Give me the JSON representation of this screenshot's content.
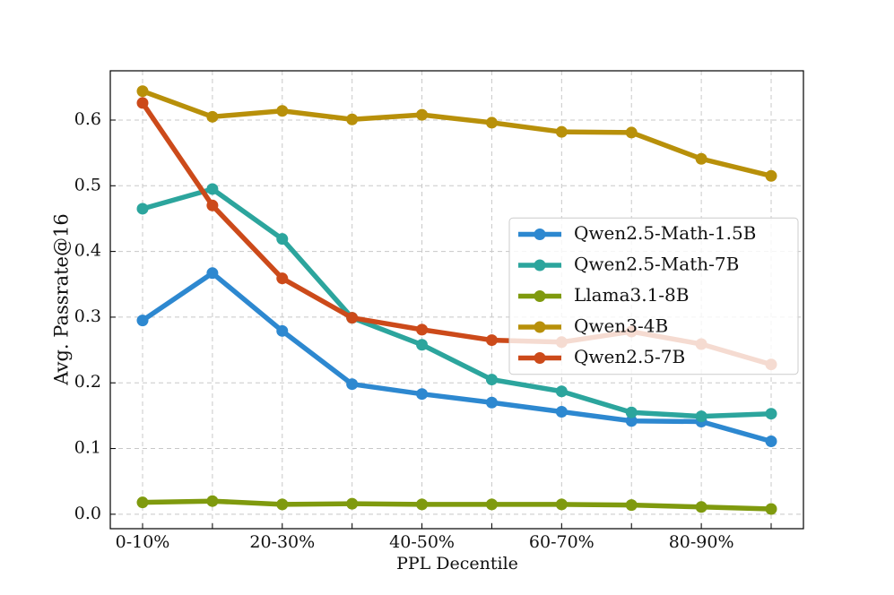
{
  "chart_data": {
    "type": "line",
    "x_label": "PPL Decentile",
    "y_label": "Avg. Passrate@16",
    "categories": [
      "0-10%",
      null,
      "20-30%",
      null,
      "40-50%",
      null,
      "60-70%",
      null,
      "80-90%",
      null
    ],
    "ylim": [
      -0.022,
      0.675
    ],
    "yticks": [
      {
        "value": 0,
        "label": "0.0"
      },
      0.1,
      0.2,
      0.3,
      0.4,
      0.5,
      0.6
    ],
    "grid": true,
    "legend": "center right",
    "series": [
      {
        "name": "Qwen2.5-Math-1.5B",
        "color": "#2d88d0",
        "values": [
          0.295,
          0.367,
          0.279,
          0.198,
          0.183,
          0.17,
          0.156,
          0.142,
          0.141,
          0.111
        ]
      },
      {
        "name": "Qwen2.5-Math-7B",
        "color": "#2ca59d",
        "values": [
          0.465,
          0.495,
          0.419,
          0.299,
          0.258,
          0.205,
          0.187,
          0.155,
          0.149,
          0.153
        ]
      },
      {
        "name": "Llama3.1-8B",
        "color": "#7f9a0e",
        "values": [
          0.018,
          0.02,
          0.015,
          0.016,
          0.015,
          0.015,
          0.015,
          0.014,
          0.011,
          0.008
        ]
      },
      {
        "name": "Qwen3-4B",
        "color": "#b8900a",
        "values": [
          0.644,
          0.605,
          0.614,
          0.601,
          0.608,
          0.596,
          0.582,
          0.581,
          0.541,
          0.515
        ]
      },
      {
        "name": "Qwen2.5-7B",
        "color": "#cc4a1a",
        "values": [
          0.626,
          0.47,
          0.359,
          0.299,
          0.281,
          0.265,
          0.262,
          0.278,
          0.259,
          0.228
        ]
      }
    ]
  }
}
